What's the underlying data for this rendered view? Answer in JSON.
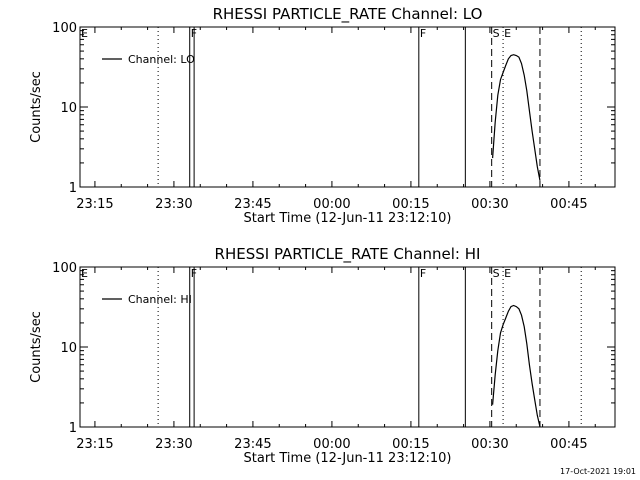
{
  "footer": {
    "timestamp": "17-Oct-2021 19:01"
  },
  "chart_data": [
    {
      "type": "line",
      "title": "RHESSI PARTICLE_RATE Channel: LO",
      "xlabel": "Start Time (12-Jun-11 23:12:10)",
      "ylabel": "Counts/sec",
      "yscale": "log",
      "ylim": [
        1,
        100
      ],
      "xlim": [
        "23:12:10",
        "00:53:45"
      ],
      "x_ticks": [
        "23:15",
        "23:30",
        "23:45",
        "00:00",
        "00:15",
        "00:30",
        "00:45"
      ],
      "y_ticks": [
        "1",
        "10",
        "100"
      ],
      "legend": {
        "position": "top-left",
        "entries": [
          "Channel: LO"
        ]
      },
      "markers": [
        {
          "label": "E",
          "time": "23:12:10",
          "style": "none"
        },
        {
          "label": "",
          "time": "23:27:00",
          "style": "dotted"
        },
        {
          "label": "F",
          "time": "23:33:00",
          "style": "solid"
        },
        {
          "label": "",
          "time": "23:33:50",
          "style": "solid"
        },
        {
          "label": "F",
          "time": "00:16:30",
          "style": "solid"
        },
        {
          "label": "",
          "time": "00:25:20",
          "style": "solid"
        },
        {
          "label": "S",
          "time": "00:30:20",
          "style": "dashed"
        },
        {
          "label": "E",
          "time": "00:32:30",
          "style": "dotted"
        },
        {
          "label": "",
          "time": "00:39:30",
          "style": "dashed"
        },
        {
          "label": "",
          "time": "00:47:20",
          "style": "dotted"
        }
      ],
      "series": [
        {
          "name": "Channel: LO",
          "x": [
            "00:30:30",
            "00:31:00",
            "00:31:30",
            "00:32:00",
            "00:32:30",
            "00:33:00",
            "00:33:30",
            "00:34:00",
            "00:34:30",
            "00:35:00",
            "00:35:30",
            "00:36:00",
            "00:36:30",
            "00:37:00",
            "00:37:30",
            "00:38:00",
            "00:38:30",
            "00:39:00",
            "00:39:30"
          ],
          "y": [
            2.3,
            6.5,
            14,
            22,
            27,
            33,
            40,
            44,
            45,
            44,
            42,
            35,
            25,
            16,
            9,
            5,
            3,
            1.8,
            1.2
          ]
        }
      ]
    },
    {
      "type": "line",
      "title": "RHESSI PARTICLE_RATE Channel: HI",
      "xlabel": "Start Time (12-Jun-11 23:12:10)",
      "ylabel": "Counts/sec",
      "yscale": "log",
      "ylim": [
        1,
        100
      ],
      "xlim": [
        "23:12:10",
        "00:53:45"
      ],
      "x_ticks": [
        "23:15",
        "23:30",
        "23:45",
        "00:00",
        "00:15",
        "00:30",
        "00:45"
      ],
      "y_ticks": [
        "1",
        "10",
        "100"
      ],
      "legend": {
        "position": "top-left",
        "entries": [
          "Channel: HI"
        ]
      },
      "markers": [
        {
          "label": "E",
          "time": "23:12:10",
          "style": "none"
        },
        {
          "label": "",
          "time": "23:27:00",
          "style": "dotted"
        },
        {
          "label": "F",
          "time": "23:33:00",
          "style": "solid"
        },
        {
          "label": "",
          "time": "23:33:50",
          "style": "solid"
        },
        {
          "label": "F",
          "time": "00:16:30",
          "style": "solid"
        },
        {
          "label": "",
          "time": "00:25:20",
          "style": "solid"
        },
        {
          "label": "S",
          "time": "00:30:20",
          "style": "dashed"
        },
        {
          "label": "E",
          "time": "00:32:30",
          "style": "dotted"
        },
        {
          "label": "",
          "time": "00:39:30",
          "style": "dashed"
        },
        {
          "label": "",
          "time": "00:47:20",
          "style": "dotted"
        }
      ],
      "series": [
        {
          "name": "Channel: HI",
          "x": [
            "00:30:30",
            "00:31:00",
            "00:31:30",
            "00:32:00",
            "00:32:30",
            "00:33:00",
            "00:33:30",
            "00:34:00",
            "00:34:30",
            "00:35:00",
            "00:35:30",
            "00:36:00",
            "00:36:30",
            "00:37:00",
            "00:37:30",
            "00:38:00",
            "00:38:30",
            "00:39:00",
            "00:39:30"
          ],
          "y": [
            1.9,
            4.5,
            9,
            15,
            19,
            23,
            28,
            32,
            33,
            32,
            30,
            25,
            18,
            11,
            6,
            3.5,
            2.2,
            1.4,
            1.0
          ]
        }
      ]
    }
  ]
}
